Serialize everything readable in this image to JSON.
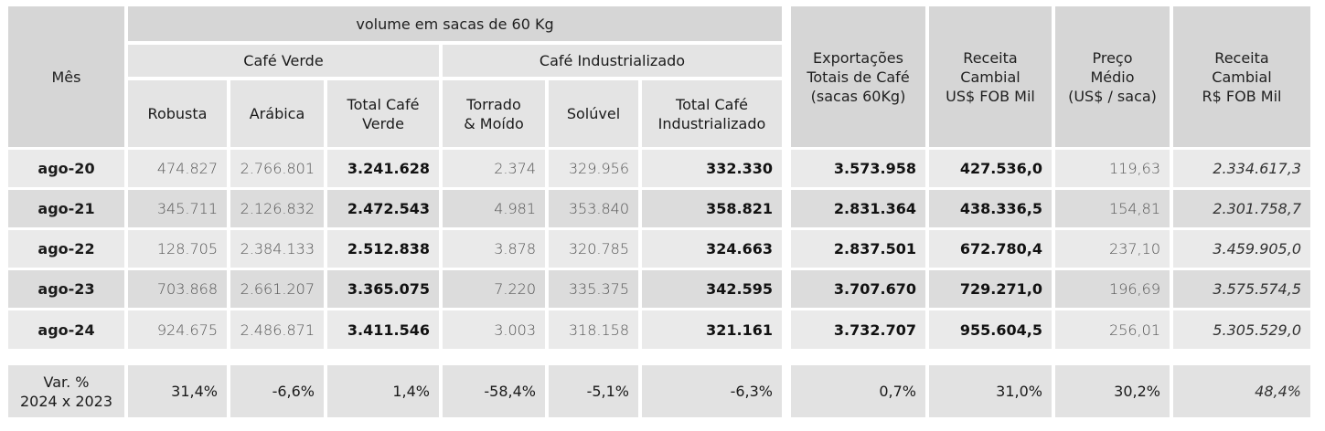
{
  "header": {
    "mes": "Mês",
    "volume": "volume em sacas de 60 Kg",
    "cafe_verde": "Café Verde",
    "cafe_industrializado": "Café Industrializado",
    "robusta": "Robusta",
    "arabica": "Arábica",
    "total_verde_1": "Total Café",
    "total_verde_2": "Verde",
    "torrado_1": "Torrado",
    "torrado_2": "& Moído",
    "soluvel": "Solúvel",
    "total_ind_1": "Total Café",
    "total_ind_2": "Industrializado",
    "export_1": "Exportações",
    "export_2": "Totais de Café",
    "export_3": "(sacas 60Kg)",
    "receita_usd_1": "Receita",
    "receita_usd_2": "Cambial",
    "receita_usd_3": "US$ FOB Mil",
    "preco_1": "Preço",
    "preco_2": "Médio",
    "preco_3": "(US$ / saca)",
    "receita_brl_1": "Receita",
    "receita_brl_2": "Cambial",
    "receita_brl_3": "R$ FOB Mil"
  },
  "rows": [
    {
      "mes": "ago-20",
      "robusta": "474.827",
      "arabica": "2.766.801",
      "total_verde": "3.241.628",
      "torrado": "2.374",
      "soluvel": "329.956",
      "total_ind": "332.330",
      "export": "3.573.958",
      "receita_usd": "427.536,0",
      "preco": "119,63",
      "receita_brl": "2.334.617,3"
    },
    {
      "mes": "ago-21",
      "robusta": "345.711",
      "arabica": "2.126.832",
      "total_verde": "2.472.543",
      "torrado": "4.981",
      "soluvel": "353.840",
      "total_ind": "358.821",
      "export": "2.831.364",
      "receita_usd": "438.336,5",
      "preco": "154,81",
      "receita_brl": "2.301.758,7"
    },
    {
      "mes": "ago-22",
      "robusta": "128.705",
      "arabica": "2.384.133",
      "total_verde": "2.512.838",
      "torrado": "3.878",
      "soluvel": "320.785",
      "total_ind": "324.663",
      "export": "2.837.501",
      "receita_usd": "672.780,4",
      "preco": "237,10",
      "receita_brl": "3.459.905,0"
    },
    {
      "mes": "ago-23",
      "robusta": "703.868",
      "arabica": "2.661.207",
      "total_verde": "3.365.075",
      "torrado": "7.220",
      "soluvel": "335.375",
      "total_ind": "342.595",
      "export": "3.707.670",
      "receita_usd": "729.271,0",
      "preco": "196,69",
      "receita_brl": "3.575.574,5"
    },
    {
      "mes": "ago-24",
      "robusta": "924.675",
      "arabica": "2.486.871",
      "total_verde": "3.411.546",
      "torrado": "3.003",
      "soluvel": "318.158",
      "total_ind": "321.161",
      "export": "3.732.707",
      "receita_usd": "955.604,5",
      "preco": "256,01",
      "receita_brl": "5.305.529,0"
    }
  ],
  "variation": {
    "label_1": "Var. %",
    "label_2": "2024 x 2023",
    "robusta": "31,4%",
    "arabica": "-6,6%",
    "total_verde": "1,4%",
    "torrado": "-58,4%",
    "soluvel": "-5,1%",
    "total_ind": "-6,3%",
    "export": "0,7%",
    "receita_usd": "31,0%",
    "preco": "30,2%",
    "receita_brl": "48,4%"
  }
}
